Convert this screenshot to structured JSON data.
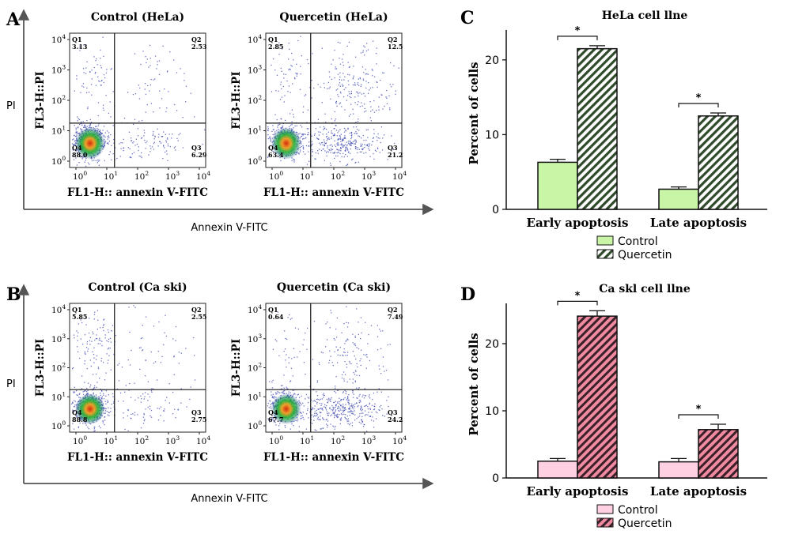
{
  "panel_letters": [
    "A",
    "B",
    "C",
    "D"
  ],
  "row_axes": [
    {
      "ylabel": "PI",
      "xlabel": "Annexin V-FITC"
    },
    {
      "ylabel": "PI",
      "xlabel": "Annexin V-FITC"
    }
  ],
  "flow_plots": [
    {
      "title": "Control (HeLa)",
      "xlabel": "FL1-H:: annexin V-FITC",
      "ylabel": "FL3-H::PI",
      "quadrants": {
        "Q1": "3.13",
        "Q2": "2.53",
        "Q3": "6.29",
        "Q4": "88.0"
      },
      "seed": 11,
      "dens": [
        0.88,
        0.03,
        0.06,
        0.03
      ]
    },
    {
      "title": "Quercetin (HeLa)",
      "xlabel": "FL1-H:: annexin V-FITC",
      "ylabel": "FL3-H::PI",
      "quadrants": {
        "Q1": "2.85",
        "Q2": "12.5",
        "Q3": "21.2",
        "Q4": "63.4"
      },
      "seed": 23,
      "dens": [
        0.63,
        0.03,
        0.21,
        0.13
      ]
    },
    {
      "title": "Control (Ca ski)",
      "xlabel": "FL1-H:: annexin V-FITC",
      "ylabel": "FL3-H::PI",
      "quadrants": {
        "Q1": "5.85",
        "Q2": "2.55",
        "Q3": "2.75",
        "Q4": "88.8"
      },
      "seed": 37,
      "dens": [
        0.89,
        0.06,
        0.03,
        0.03
      ]
    },
    {
      "title": "Quercetin (Ca ski)",
      "xlabel": "FL1-H:: annexin V-FITC",
      "ylabel": "FL3-H::PI",
      "quadrants": {
        "Q1": "0.64",
        "Q2": "7.49",
        "Q3": "24.2",
        "Q4": "67.7"
      },
      "seed": 53,
      "dens": [
        0.68,
        0.01,
        0.24,
        0.08
      ]
    }
  ],
  "flow_ticks": [
    "10",
    "10",
    "10",
    "10",
    "10"
  ],
  "flow_tick_exps": [
    "0",
    "1",
    "2",
    "3",
    "4"
  ],
  "chart_data": [
    {
      "type": "bar",
      "title": "HeLa cell llne",
      "ylabel": "Percent of cells",
      "categories": [
        "Early apoptosis",
        "Late apoptosis"
      ],
      "ylim": [
        0,
        24
      ],
      "yticks": [
        0,
        10,
        20
      ],
      "series": [
        {
          "name": "Control",
          "values": [
            6.3,
            2.7
          ],
          "errors": [
            0.4,
            0.3
          ],
          "color": "#c8f5a6",
          "pattern": "none"
        },
        {
          "name": "Quercetin",
          "values": [
            21.5,
            12.5
          ],
          "errors": [
            0.4,
            0.4
          ],
          "color": "#ffffff",
          "pattern": "green-hatch"
        }
      ],
      "significance": [
        "*",
        "*"
      ],
      "legend": "bottom-center"
    },
    {
      "type": "bar",
      "title": "Ca skl cell llne",
      "ylabel": "Percent of cells",
      "categories": [
        "Early apoptosis",
        "Late apoptosis"
      ],
      "ylim": [
        0,
        26
      ],
      "yticks": [
        0,
        10,
        20
      ],
      "series": [
        {
          "name": "Control",
          "values": [
            2.5,
            2.4
          ],
          "errors": [
            0.4,
            0.5
          ],
          "color": "#ffd0e2",
          "pattern": "none"
        },
        {
          "name": "Quercetin",
          "values": [
            24.1,
            7.2
          ],
          "errors": [
            0.8,
            0.8
          ],
          "color": "#f08aa0",
          "pattern": "red-hatch"
        }
      ],
      "significance": [
        "*",
        "*"
      ],
      "legend": "bottom-center"
    }
  ]
}
